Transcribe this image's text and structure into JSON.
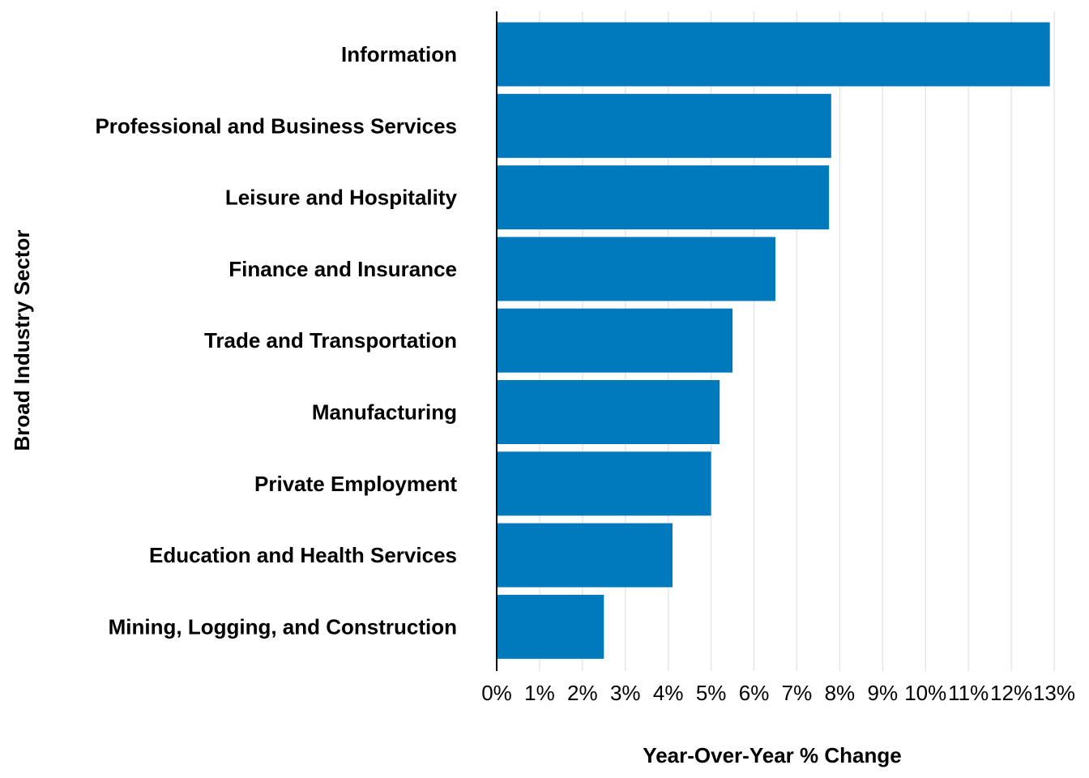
{
  "chart_data": {
    "type": "bar",
    "orientation": "horizontal",
    "categories": [
      "Information",
      "Professional and Business Services",
      "Leisure and Hospitality",
      "Finance and Insurance",
      "Trade and Transportation",
      "Manufacturing",
      "Private Employment",
      "Education and Health Services",
      "Mining, Logging, and Construction"
    ],
    "values": [
      12.9,
      7.8,
      7.75,
      6.5,
      5.5,
      5.2,
      5.0,
      4.1,
      2.5
    ],
    "xlabel": "Year-Over-Year % Change",
    "ylabel": "Broad Industry Sector",
    "xlim": [
      0,
      13
    ],
    "xticks": [
      0,
      1,
      2,
      3,
      4,
      5,
      6,
      7,
      8,
      9,
      10,
      11,
      12,
      13
    ],
    "xtick_labels": [
      "0%",
      "1%",
      "2%",
      "3%",
      "4%",
      "5%",
      "6%",
      "7%",
      "8%",
      "9%",
      "10%",
      "11%",
      "12%",
      "13%"
    ],
    "grid": "vertical",
    "legend": "none",
    "bar_color": "#0079BD",
    "grid_color": "#E5E5E5"
  }
}
